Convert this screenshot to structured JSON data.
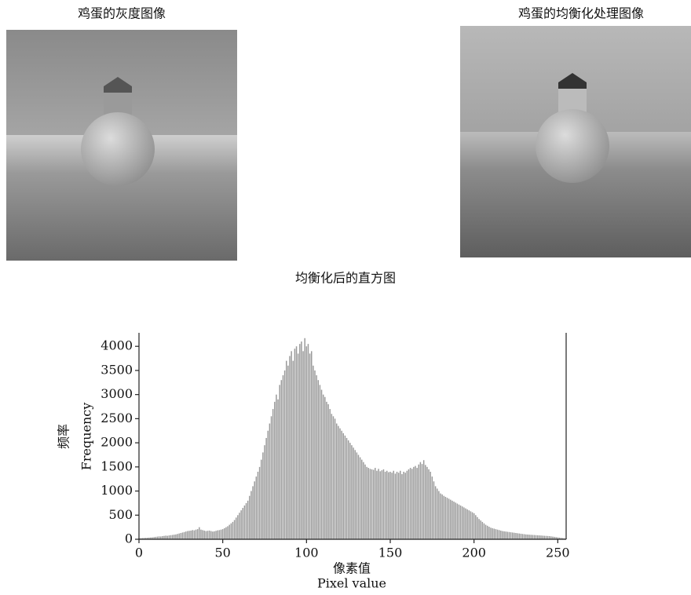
{
  "images": {
    "left_title": "鸡蛋的灰度图像",
    "right_title": "鸡蛋的均衡化处理图像"
  },
  "chart_data": {
    "type": "bar",
    "title": "均衡化后的直方图",
    "xlabel": [
      "像素值",
      "Pixel value"
    ],
    "ylabel": [
      "频率",
      "Frequency"
    ],
    "xlim": [
      0,
      255
    ],
    "xticks": [
      0,
      50,
      100,
      150,
      200,
      250
    ],
    "ylim": [
      0,
      4280
    ],
    "yticks": [
      0,
      500,
      1000,
      1500,
      2000,
      2500,
      3000,
      3500,
      4000
    ],
    "color": "#9a9a9a",
    "values": [
      20,
      22,
      25,
      28,
      30,
      32,
      35,
      38,
      40,
      45,
      50,
      55,
      60,
      58,
      65,
      70,
      75,
      72,
      80,
      85,
      90,
      95,
      100,
      110,
      120,
      130,
      140,
      150,
      160,
      170,
      175,
      180,
      190,
      185,
      200,
      210,
      250,
      200,
      190,
      180,
      170,
      175,
      180,
      170,
      160,
      165,
      175,
      185,
      190,
      200,
      210,
      230,
      250,
      270,
      300,
      330,
      360,
      400,
      450,
      500,
      550,
      600,
      650,
      700,
      750,
      800,
      900,
      1000,
      1100,
      1200,
      1300,
      1400,
      1500,
      1650,
      1800,
      1950,
      2100,
      2250,
      2400,
      2550,
      2700,
      2850,
      3000,
      2900,
      3200,
      3300,
      3400,
      3500,
      3700,
      3600,
      3800,
      3900,
      3700,
      3950,
      4000,
      3850,
      4050,
      4100,
      3900,
      4170,
      4000,
      4050,
      3850,
      3900,
      3600,
      3500,
      3400,
      3300,
      3200,
      3100,
      3000,
      2950,
      2850,
      2800,
      2700,
      2600,
      2550,
      2500,
      2400,
      2350,
      2300,
      2250,
      2200,
      2150,
      2100,
      2050,
      2000,
      1950,
      1900,
      1850,
      1800,
      1750,
      1700,
      1650,
      1600,
      1550,
      1500,
      1480,
      1460,
      1450,
      1440,
      1480,
      1420,
      1460,
      1410,
      1430,
      1450,
      1400,
      1420,
      1390,
      1400,
      1380,
      1420,
      1360,
      1400,
      1380,
      1420,
      1350,
      1400,
      1380,
      1420,
      1450,
      1480,
      1460,
      1500,
      1520,
      1480,
      1550,
      1600,
      1560,
      1640,
      1540,
      1500,
      1450,
      1400,
      1300,
      1200,
      1100,
      1050,
      1000,
      950,
      930,
      900,
      880,
      860,
      840,
      820,
      800,
      780,
      760,
      740,
      720,
      700,
      680,
      660,
      640,
      620,
      600,
      580,
      560,
      540,
      500,
      460,
      420,
      390,
      360,
      330,
      300,
      280,
      260,
      240,
      230,
      220,
      210,
      200,
      190,
      180,
      170,
      165,
      160,
      155,
      150,
      145,
      140,
      135,
      130,
      125,
      120,
      115,
      110,
      105,
      100,
      98,
      95,
      92,
      90,
      88,
      85,
      82,
      80,
      78,
      75,
      72,
      70,
      68,
      65,
      60,
      55,
      50,
      45,
      40,
      35,
      30,
      25,
      20,
      15
    ]
  }
}
